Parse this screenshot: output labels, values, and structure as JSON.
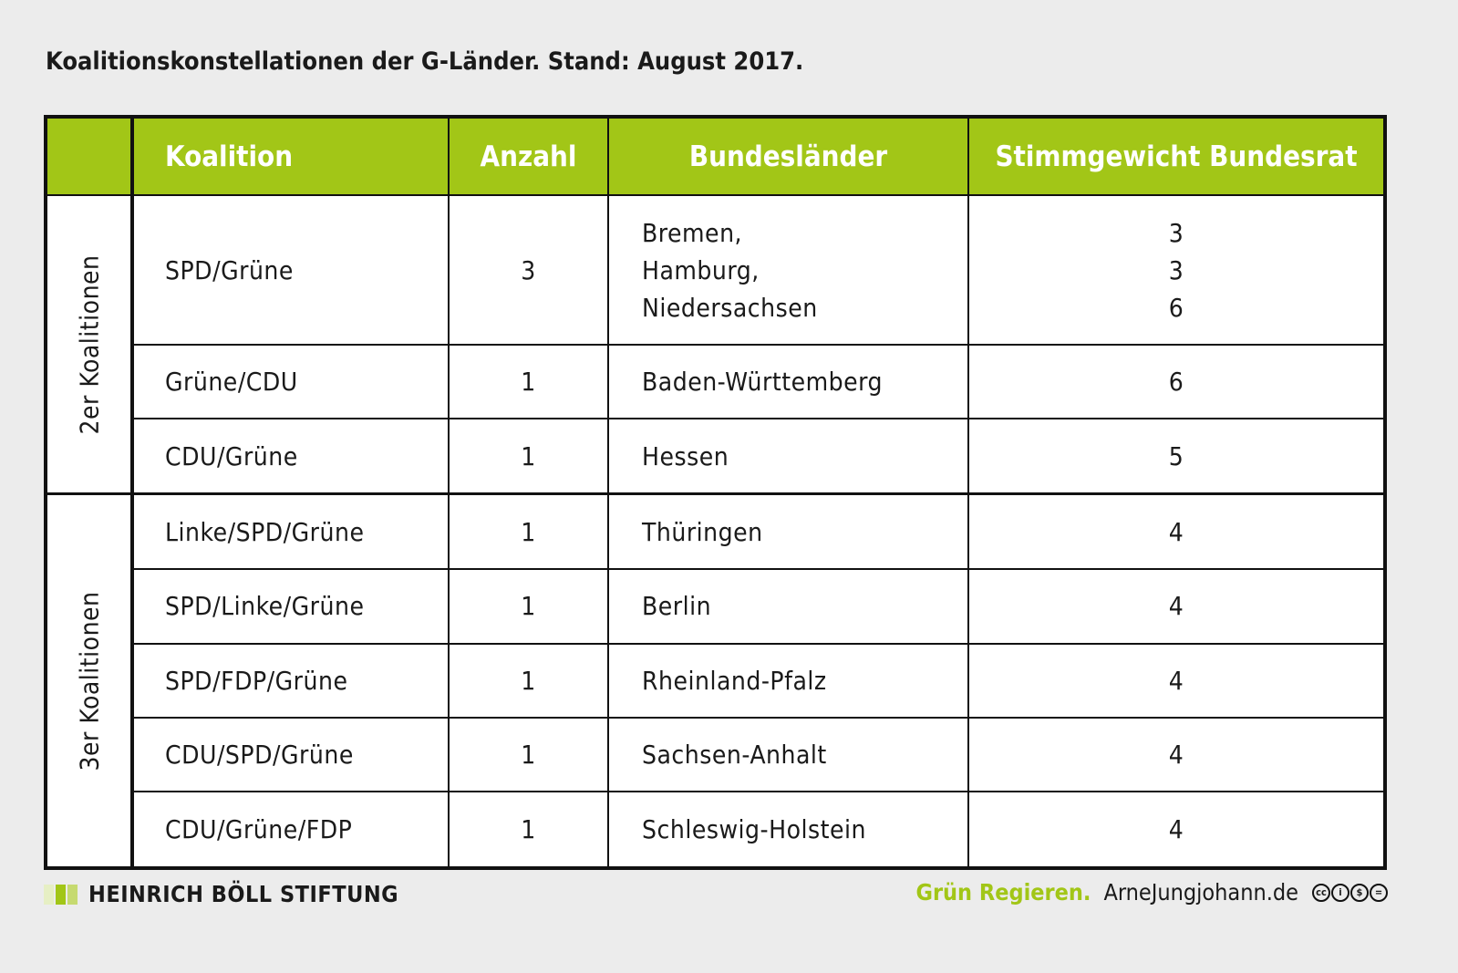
{
  "title": "Koalitionskonstellationen der G-Länder. Stand: August 2017.",
  "headers": {
    "koalition": "Koalition",
    "anzahl": "Anzahl",
    "bundeslaender": "Bundesländer",
    "stimmgewicht": "Stimmgewicht Bundesrat"
  },
  "groups": {
    "two": "2er Koalitionen",
    "three": "3er Koalitionen"
  },
  "rows": [
    {
      "koalition": "SPD/Grüne",
      "anzahl": "3",
      "laender": [
        "Bremen,",
        "Hamburg,",
        "Niedersachsen"
      ],
      "stimmen": [
        "3",
        "3",
        "6"
      ]
    },
    {
      "koalition": "Grüne/CDU",
      "anzahl": "1",
      "land": "Baden-Württemberg",
      "stimme": "6"
    },
    {
      "koalition": "CDU/Grüne",
      "anzahl": "1",
      "land": "Hessen",
      "stimme": "5"
    },
    {
      "koalition": "Linke/SPD/Grüne",
      "anzahl": "1",
      "land": "Thüringen",
      "stimme": "4"
    },
    {
      "koalition": "SPD/Linke/Grüne",
      "anzahl": "1",
      "land": "Berlin",
      "stimme": "4"
    },
    {
      "koalition": "SPD/FDP/Grüne",
      "anzahl": "1",
      "land": "Rheinland-Pfalz",
      "stimme": "4"
    },
    {
      "koalition": "CDU/SPD/Grüne",
      "anzahl": "1",
      "land": "Sachsen-Anhalt",
      "stimme": "4"
    },
    {
      "koalition": "CDU/Grüne/FDP",
      "anzahl": "1",
      "land": "Schleswig-Holstein",
      "stimme": "4"
    }
  ],
  "footer": {
    "foundation": "HEINRICH BÖLL STIFTUNG",
    "slogan": "Grün Regieren.",
    "site": "ArneJungjohann.de",
    "license_icons": [
      "cc",
      "by",
      "nc",
      "nd"
    ]
  },
  "colors": {
    "accent": "#a2c617",
    "background": "#ececec"
  }
}
